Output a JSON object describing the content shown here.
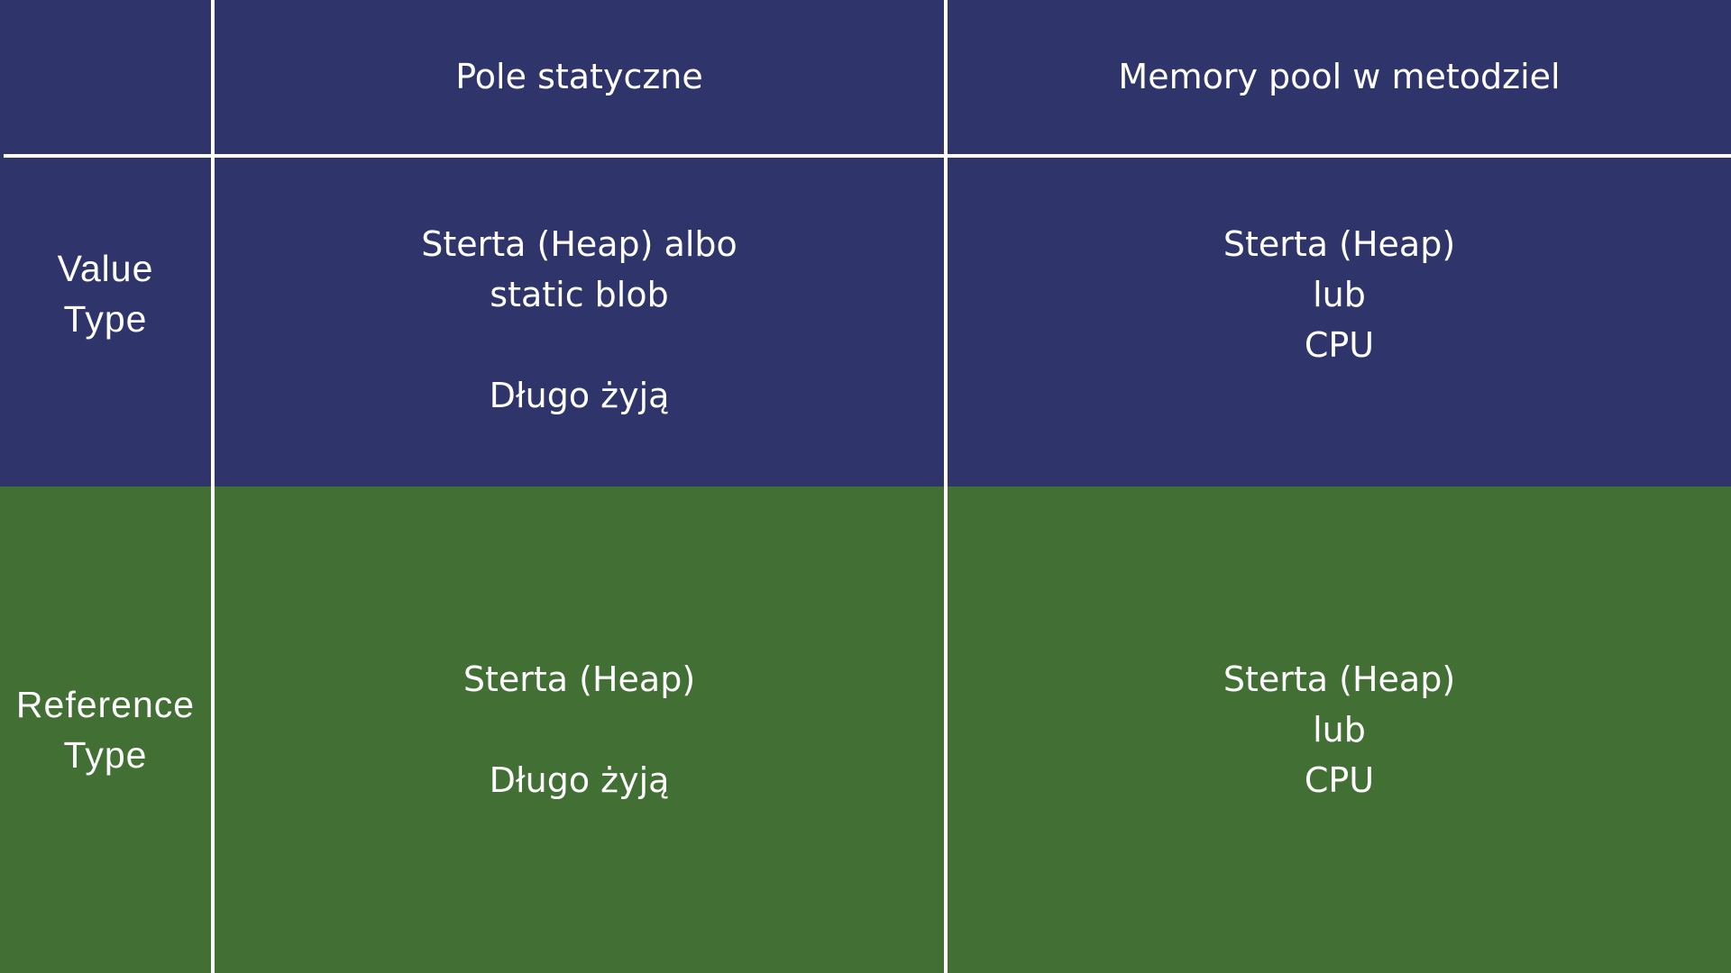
{
  "colors": {
    "top_band": "#2f346b",
    "bottom_band": "#426f34",
    "grid_lines": "#ffffff",
    "text": "#ffffff"
  },
  "table": {
    "corner": "",
    "column_headers": [
      "Pole statyczne",
      "Memory pool w metodziel"
    ],
    "rows": [
      {
        "label": "Value\nType",
        "cells": [
          "Sterta (Heap) albo\nstatic blob\n\nDługo żyją",
          "Sterta (Heap)\nlub\nCPU"
        ]
      },
      {
        "label": "Reference\nType",
        "cells": [
          "Sterta (Heap)\n\nDługo żyją",
          "Sterta (Heap)\nlub\nCPU"
        ]
      }
    ]
  }
}
